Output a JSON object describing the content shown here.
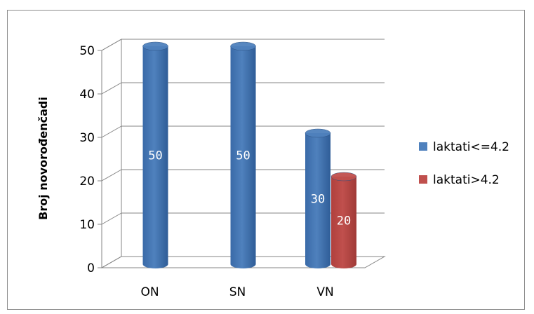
{
  "chart_data": {
    "type": "bar",
    "style": "3d-cylinder",
    "categories": [
      "ON",
      "SN",
      "VN"
    ],
    "series": [
      {
        "name": "laktati<=4.2",
        "color": "#4f81bd",
        "values": [
          50,
          50,
          30
        ]
      },
      {
        "name": "laktati>4.2",
        "color": "#c0504d",
        "values": [
          null,
          null,
          20
        ]
      }
    ],
    "ylabel": "Broj novorođenčadi",
    "xlabel": "",
    "title": "",
    "ylim": [
      0,
      50
    ],
    "yticks": [
      0,
      10,
      20,
      30,
      40,
      50
    ],
    "grid": true,
    "legend": "right"
  }
}
